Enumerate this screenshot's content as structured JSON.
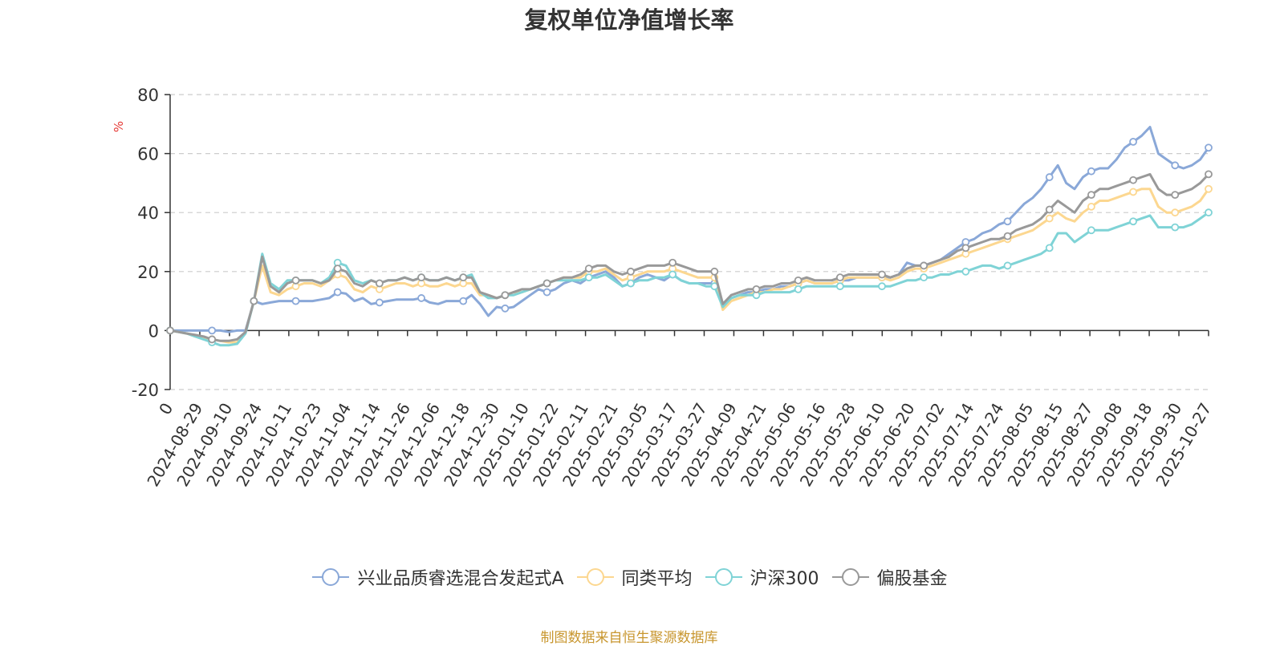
{
  "chart_data": {
    "type": "line",
    "title": "复权单位净值增长率",
    "ylabel": "%",
    "ylim": [
      -20,
      80
    ],
    "yticks": [
      -20,
      0,
      20,
      40,
      60,
      80
    ],
    "grid": true,
    "legend_position": "bottom",
    "source": "制图数据来自恒生聚源数据库",
    "x_tick_labels": [
      "0",
      "2024-08-29",
      "2024-09-10",
      "2024-09-24",
      "2024-10-11",
      "2024-10-23",
      "2024-11-04",
      "2024-11-14",
      "2024-11-26",
      "2024-12-06",
      "2024-12-18",
      "2024-12-30",
      "2025-01-10",
      "2025-01-22",
      "2025-02-11",
      "2025-02-21",
      "2025-03-05",
      "2025-03-17",
      "2025-03-27",
      "2025-04-09",
      "2025-04-21",
      "2025-05-06",
      "2025-05-16",
      "2025-05-28",
      "2025-06-10",
      "2025-06-20",
      "2025-07-02",
      "2025-07-14",
      "2025-07-24",
      "2025-08-05",
      "2025-08-15",
      "2025-08-27",
      "2025-09-08",
      "2025-09-18",
      "2025-09-30",
      "2025-10-27"
    ],
    "series": [
      {
        "name": "兴业品质睿选混合发起式A",
        "color": "#8aa8d8",
        "values": [
          0,
          0,
          0,
          0,
          0,
          0,
          0,
          -0.5,
          0,
          0,
          10,
          9,
          9.5,
          10,
          10,
          10,
          10,
          10,
          10.5,
          11,
          13,
          12.5,
          10,
          11,
          9,
          9.5,
          10,
          10.5,
          10.5,
          10.5,
          11,
          9.5,
          9,
          10,
          10,
          10,
          12,
          9,
          5,
          8,
          7.5,
          8,
          10,
          12,
          14,
          13,
          14,
          16,
          17,
          16,
          18,
          19,
          20,
          18,
          15,
          16,
          18,
          19,
          18,
          17,
          19,
          17,
          16,
          16,
          16,
          16,
          8,
          11,
          12,
          13,
          13,
          14,
          14,
          15,
          15,
          16,
          17,
          16,
          16,
          16,
          17,
          17,
          18,
          18,
          18,
          18,
          18,
          19,
          23,
          22,
          22,
          23,
          24,
          26,
          28,
          30,
          31,
          33,
          34,
          36,
          37,
          40,
          43,
          45,
          48,
          52,
          56,
          50,
          48,
          52,
          54,
          55,
          55,
          58,
          62,
          64,
          66,
          69,
          60,
          58,
          56,
          55,
          56,
          58,
          62
        ]
      },
      {
        "name": "同类平均",
        "color": "#fcd790",
        "values": [
          0,
          -0.5,
          -1,
          -2,
          -2.5,
          -3,
          -3.5,
          -4,
          -4,
          -0.5,
          10,
          22,
          13,
          12,
          14,
          15,
          16,
          16,
          15,
          17,
          19,
          18,
          14,
          13,
          15,
          14,
          15,
          16,
          16,
          15,
          16,
          15,
          15,
          16,
          15,
          16,
          16,
          12,
          12,
          11,
          12,
          13,
          13,
          14,
          15,
          16,
          17,
          18,
          18,
          18,
          20,
          20,
          21,
          19,
          17,
          18,
          19,
          20,
          20,
          20,
          21,
          20,
          19,
          18,
          18,
          18,
          7,
          10,
          11,
          12,
          13,
          13,
          14,
          14,
          15,
          16,
          17,
          16,
          16,
          16,
          17,
          18,
          18,
          18,
          18,
          18,
          17,
          18,
          20,
          21,
          21,
          22,
          23,
          24,
          25,
          26,
          27,
          28,
          29,
          30,
          31,
          32,
          33,
          34,
          36,
          38,
          40,
          38,
          37,
          40,
          42,
          44,
          44,
          45,
          46,
          47,
          48,
          48,
          42,
          40,
          40,
          41,
          42,
          44,
          48
        ]
      },
      {
        "name": "沪深300",
        "color": "#7fd3d6",
        "values": [
          0,
          -0.5,
          -1,
          -2,
          -3,
          -4,
          -5,
          -5,
          -4.5,
          -1,
          10,
          26,
          16,
          14,
          17,
          17,
          17,
          17,
          16,
          18,
          23,
          22,
          17,
          16,
          17,
          16,
          17,
          17,
          18,
          17,
          18,
          17,
          17,
          18,
          17,
          18,
          19,
          13,
          11,
          11,
          12,
          12,
          13,
          14,
          15,
          16,
          17,
          17,
          17,
          17,
          18,
          18,
          19,
          17,
          15,
          16,
          17,
          17,
          18,
          18,
          19,
          17,
          16,
          16,
          15,
          15,
          8,
          11,
          12,
          12,
          12,
          13,
          13,
          13,
          13,
          14,
          15,
          15,
          15,
          15,
          15,
          15,
          15,
          15,
          15,
          15,
          15,
          16,
          17,
          17,
          18,
          18,
          19,
          19,
          20,
          20,
          21,
          22,
          22,
          21,
          22,
          23,
          24,
          25,
          26,
          28,
          33,
          33,
          30,
          32,
          34,
          34,
          34,
          35,
          36,
          37,
          38,
          39,
          35,
          35,
          35,
          35,
          36,
          38,
          40
        ]
      },
      {
        "name": "偏股基金",
        "color": "#999999",
        "values": [
          0,
          -0.5,
          -1,
          -1.5,
          -2,
          -3,
          -3.5,
          -3.5,
          -3,
          -0.5,
          10,
          25,
          15,
          13,
          16,
          17,
          17,
          17,
          16,
          17,
          21,
          20,
          16,
          15,
          17,
          16,
          17,
          17,
          18,
          17,
          18,
          17,
          17,
          18,
          17,
          18,
          18,
          13,
          12,
          11,
          12,
          13,
          14,
          14,
          15,
          16,
          17,
          18,
          18,
          19,
          21,
          22,
          22,
          20,
          19,
          20,
          21,
          22,
          22,
          22,
          23,
          22,
          21,
          20,
          20,
          20,
          9,
          12,
          13,
          14,
          14,
          15,
          15,
          16,
          16,
          17,
          18,
          17,
          17,
          17,
          18,
          19,
          19,
          19,
          19,
          19,
          18,
          19,
          21,
          22,
          22,
          23,
          24,
          25,
          27,
          28,
          29,
          30,
          31,
          31,
          32,
          34,
          35,
          36,
          38,
          41,
          44,
          42,
          40,
          44,
          46,
          48,
          48,
          49,
          50,
          51,
          52,
          53,
          48,
          46,
          46,
          47,
          48,
          50,
          53
        ]
      }
    ]
  }
}
